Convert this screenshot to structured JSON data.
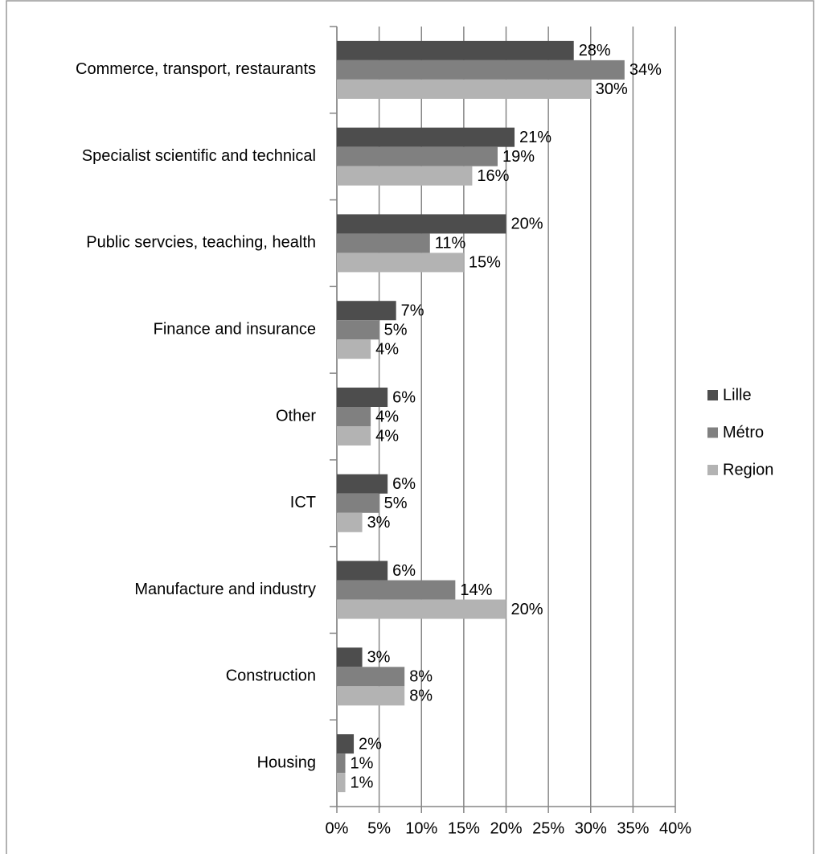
{
  "chart_data": {
    "type": "hbar",
    "categories": [
      "Commerce, transport, restaurants",
      "Specialist scientific and technical",
      "Public servcies, teaching, health",
      "Finance and insurance",
      "Other",
      "ICT",
      "Manufacture and industry",
      "Construction",
      "Housing"
    ],
    "series": [
      {
        "name": "Lille",
        "color": "#4d4d4d",
        "values": [
          28,
          21,
          20,
          7,
          6,
          6,
          6,
          3,
          2
        ],
        "value_labels": [
          "28%",
          "21%",
          "20%",
          "7%",
          "6%",
          "6%",
          "6%",
          "3%",
          "2%"
        ]
      },
      {
        "name": "Métro",
        "color": "#808080",
        "values": [
          34,
          19,
          11,
          5,
          4,
          5,
          14,
          8,
          1
        ],
        "value_labels": [
          "34%",
          "19%",
          "11%",
          "5%",
          "4%",
          "5%",
          "14%",
          "8%",
          "1%"
        ]
      },
      {
        "name": "Region",
        "color": "#b3b3b3",
        "values": [
          30,
          16,
          15,
          4,
          4,
          3,
          20,
          8,
          1
        ],
        "value_labels": [
          "30%",
          "16%",
          "15%",
          "4%",
          "4%",
          "3%",
          "20%",
          "8%",
          "1%"
        ]
      }
    ],
    "xlim": [
      0,
      40
    ],
    "xticks": [
      {
        "value": 0,
        "label": "0%"
      },
      {
        "value": 5,
        "label": "5%"
      },
      {
        "value": 10,
        "label": "10%"
      },
      {
        "value": 15,
        "label": "15%"
      },
      {
        "value": 20,
        "label": "20%"
      },
      {
        "value": 25,
        "label": "25%"
      },
      {
        "value": 30,
        "label": "30%"
      },
      {
        "value": 35,
        "label": "35%"
      },
      {
        "value": 40,
        "label": "40%"
      }
    ],
    "grid": true,
    "legend": "right"
  }
}
